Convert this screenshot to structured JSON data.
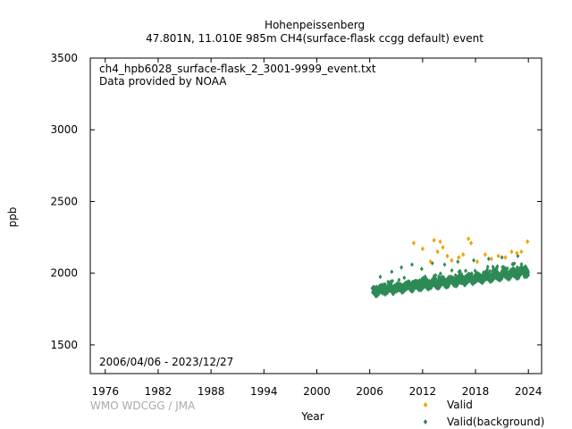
{
  "chart_data": {
    "type": "scatter",
    "title_line1": "Hohenpeissenberg",
    "title_line2": "47.801N, 11.010E 985m    CH4(surface-flask ccgg default) event",
    "file_label": "ch4_hpb6028_surface-flask_2_3001-9999_event.txt",
    "provider_label": "Data provided by NOAA",
    "date_range_label": "2006/04/06 - 2023/12/27",
    "credit": "WMO WDCGG / JMA",
    "xlabel": "Year",
    "ylabel": "ppb",
    "xlim": [
      1974.3,
      2025.5
    ],
    "ylim": [
      1300,
      3500
    ],
    "x_ticks": [
      1976,
      1982,
      1988,
      1994,
      2000,
      2006,
      2012,
      2018,
      2024
    ],
    "y_ticks": [
      1500,
      2000,
      2500,
      3000,
      3500
    ],
    "grid": false,
    "legend_position": "bottom-right-outside",
    "series": [
      {
        "name": "Valid",
        "color": "#f0a30a",
        "marker": "diamond",
        "points": [
          [
            2011.0,
            2210
          ],
          [
            2012.0,
            2170
          ],
          [
            2012.9,
            2080
          ],
          [
            2013.3,
            2230
          ],
          [
            2013.7,
            2150
          ],
          [
            2014.0,
            2220
          ],
          [
            2014.3,
            2180
          ],
          [
            2014.8,
            2120
          ],
          [
            2015.3,
            2090
          ],
          [
            2016.1,
            2110
          ],
          [
            2016.6,
            2130
          ],
          [
            2017.2,
            2240
          ],
          [
            2017.5,
            2210
          ],
          [
            2018.2,
            2080
          ],
          [
            2019.1,
            2130
          ],
          [
            2019.8,
            2100
          ],
          [
            2020.6,
            2120
          ],
          [
            2021.4,
            2110
          ],
          [
            2022.1,
            2150
          ],
          [
            2022.7,
            2140
          ],
          [
            2023.2,
            2150
          ],
          [
            2023.9,
            2220
          ]
        ]
      },
      {
        "name": "Valid(background)",
        "color": "#2e8b57",
        "marker": "diamond",
        "background": {
          "x_start": 2006.3,
          "x_end": 2023.99,
          "base_start": 1875,
          "base_end": 2010,
          "spread": 55,
          "samples": 1400
        },
        "outliers": [
          [
            2007.2,
            1975
          ],
          [
            2008.5,
            2010
          ],
          [
            2009.6,
            2040
          ],
          [
            2010.8,
            2060
          ],
          [
            2011.9,
            2030
          ],
          [
            2013.1,
            2070
          ],
          [
            2014.5,
            2060
          ],
          [
            2016.0,
            2080
          ],
          [
            2017.8,
            2090
          ],
          [
            2019.5,
            2100
          ],
          [
            2021.0,
            2110
          ],
          [
            2022.8,
            2120
          ]
        ]
      }
    ]
  }
}
